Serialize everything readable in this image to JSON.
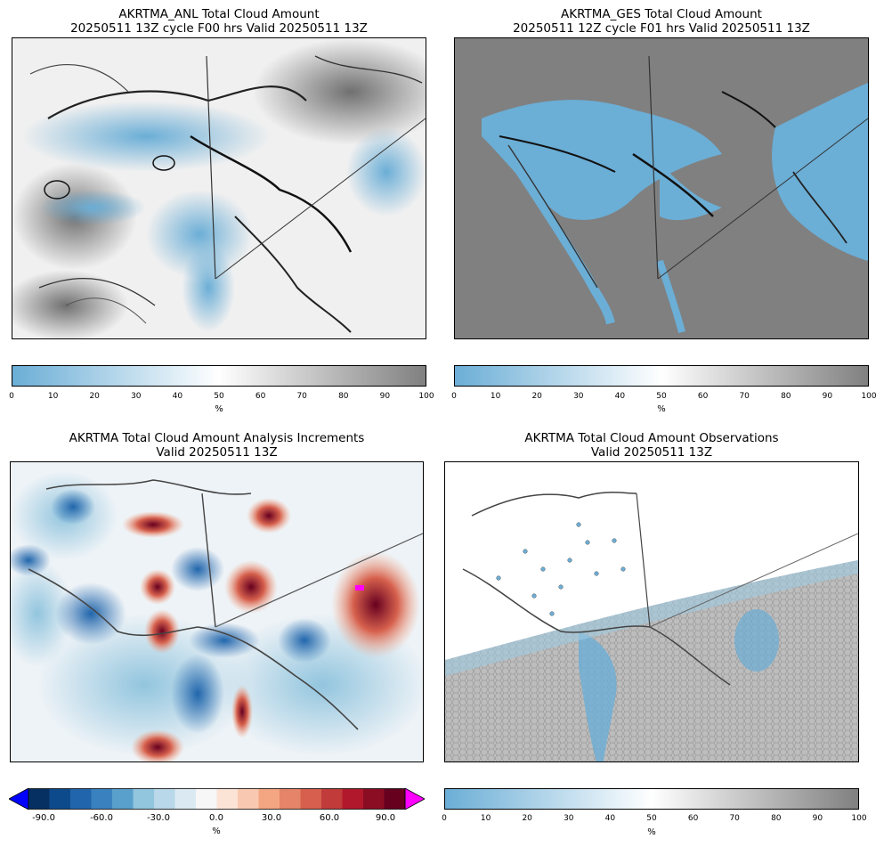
{
  "panels": {
    "anl": {
      "title_line1": "AKRTMA_ANL Total Cloud Amount",
      "title_line2": "20250511 13Z cycle F00 hrs Valid 20250511 13Z"
    },
    "ges": {
      "title_line1": "AKRTMA_GES Total Cloud Amount",
      "title_line2": "20250511 12Z cycle F01 hrs Valid 20250511 13Z"
    },
    "inc": {
      "title_line1": "AKRTMA Total Cloud Amount Analysis Increments",
      "title_line2": "Valid 20250511 13Z"
    },
    "obs": {
      "title_line1": "AKRTMA Total Cloud Amount Observations",
      "title_line2": "Valid 20250511 13Z"
    }
  },
  "colorbars": {
    "seq": {
      "ticks": [
        "0",
        "10",
        "20",
        "30",
        "40",
        "50",
        "60",
        "70",
        "80",
        "90",
        "100"
      ],
      "unit": "%",
      "colors": [
        "#6baed6",
        "#ffffff",
        "#808080"
      ]
    },
    "div": {
      "ticks": [
        "-90.0",
        "-60.0",
        "-30.0",
        "0.0",
        "30.0",
        "60.0",
        "90.0"
      ],
      "unit": "%",
      "under_color": "#0000ff",
      "over_color": "#ff00ff"
    }
  }
}
